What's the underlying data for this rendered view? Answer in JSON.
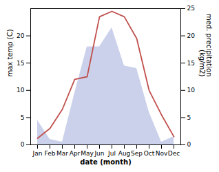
{
  "chart_data": {
    "type": "line",
    "categories": [
      "Jan",
      "Feb",
      "Mar",
      "Apr",
      "May",
      "Jun",
      "Jul",
      "Aug",
      "Sep",
      "Oct",
      "Nov",
      "Dec"
    ],
    "series": [
      {
        "type": "area",
        "axis": "y2",
        "color": "#c5cce8",
        "values": [
          4.5,
          1.0,
          0.5,
          9.5,
          18.0,
          18.0,
          21.5,
          14.5,
          14.0,
          6.0,
          0.5,
          1.5
        ]
      },
      {
        "type": "line",
        "color": "#c0504d",
        "values": [
          1.2,
          3.0,
          6.5,
          12.0,
          12.5,
          23.5,
          24.5,
          23.5,
          19.5,
          10.0,
          5.5,
          1.5
        ]
      }
    ],
    "xlabel": "date (month)",
    "ylabel": "max temp (C)",
    "y2label": "med. precipitation\n(kg/m2)",
    "ylim": [
      0,
      25
    ],
    "yticks": [
      0,
      5,
      10,
      15,
      20
    ],
    "y2lim": [
      0,
      25
    ],
    "y2ticks": [
      0,
      5,
      10,
      15,
      20,
      25
    ],
    "grid": false
  }
}
